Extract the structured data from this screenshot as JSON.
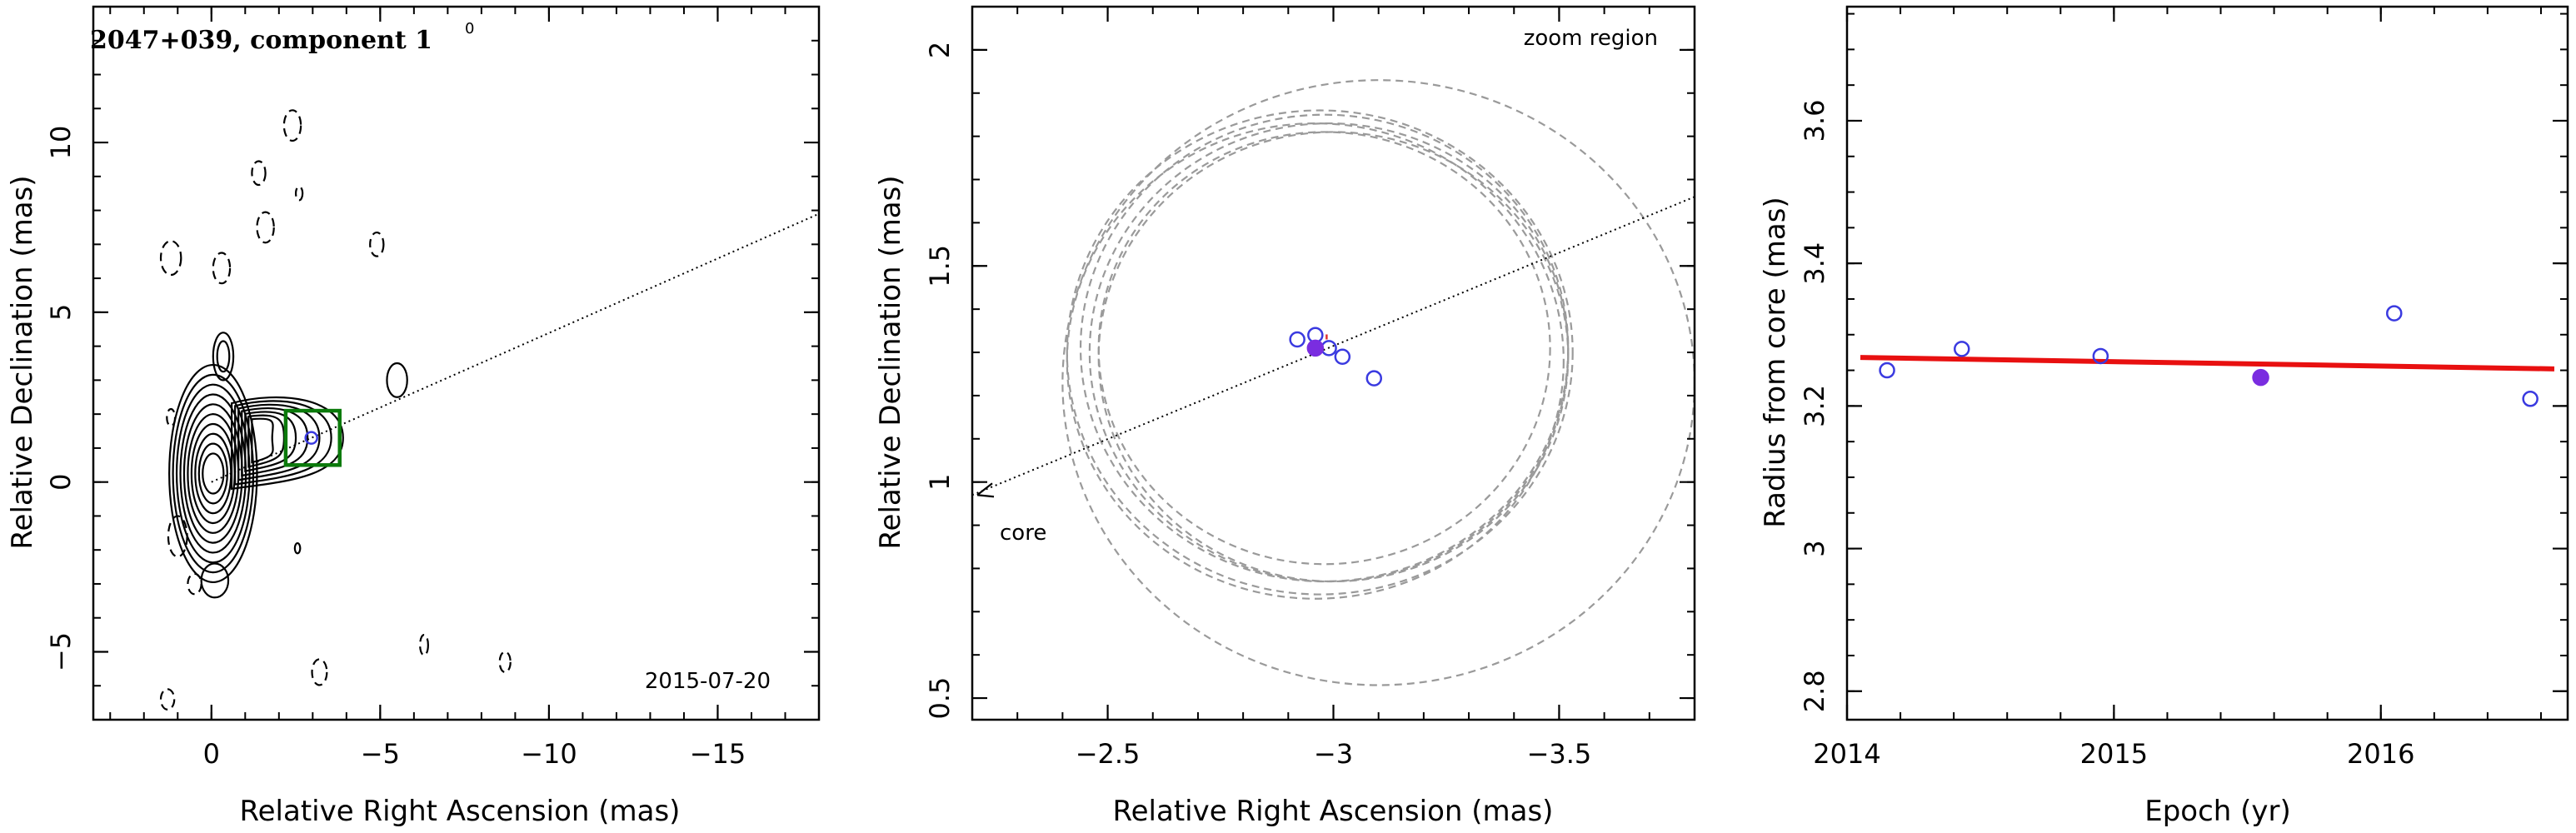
{
  "chart_data": [
    {
      "type": "contour",
      "title": "2047+039, component 1",
      "title_marker": "0",
      "xlabel": "Relative Right Ascension (mas)",
      "ylabel": "Relative Declination (mas)",
      "xlim": [
        3.5,
        -18
      ],
      "ylim": [
        -7,
        14
      ],
      "xticks": [
        0,
        -5,
        -10,
        -15
      ],
      "yticks": [
        -5,
        0,
        5,
        10
      ],
      "annotation": "2015-07-20",
      "component_position": [
        -2.96,
        1.3
      ],
      "zoom_box": {
        "x": [
          -2.2,
          -3.8
        ],
        "y": [
          0.5,
          2.1
        ],
        "color": "#0b7a0b"
      },
      "jet_direction_line": {
        "from": [
          0,
          0
        ],
        "to": [
          -18,
          7.9
        ]
      },
      "colors": {
        "positive_contours": "#000000",
        "negative_contours": "#000000",
        "component": "#3a3ae0",
        "zoom_box": "#0b7a0b"
      }
    },
    {
      "type": "scatter",
      "title": "",
      "xlabel": "Relative Right Ascension (mas)",
      "ylabel": "Relative Declination (mas)",
      "xlim": [
        -2.2,
        -3.8
      ],
      "ylim": [
        0.45,
        2.1
      ],
      "xticks": [
        -2.5,
        -3,
        -3.5
      ],
      "yticks": [
        0.5,
        1,
        1.5,
        2
      ],
      "annotations": [
        "zoom region",
        "core"
      ],
      "points": [
        {
          "x": -2.92,
          "y": 1.33,
          "filled": false
        },
        {
          "x": -2.96,
          "y": 1.34,
          "filled": false
        },
        {
          "x": -2.99,
          "y": 1.31,
          "filled": false
        },
        {
          "x": -3.02,
          "y": 1.29,
          "filled": false
        },
        {
          "x": -3.09,
          "y": 1.24,
          "filled": false
        },
        {
          "x": -2.96,
          "y": 1.31,
          "filled": true
        }
      ],
      "beam_circles": [
        {
          "cx": -2.99,
          "cy": 1.3,
          "r": 0.53
        },
        {
          "cx": -2.98,
          "cy": 1.31,
          "r": 0.5
        },
        {
          "cx": -2.98,
          "cy": 1.31,
          "r": 0.54
        },
        {
          "cx": -2.97,
          "cy": 1.3,
          "r": 0.56
        },
        {
          "cx": -2.96,
          "cy": 1.28,
          "r": 0.55
        },
        {
          "cx": -3.0,
          "cy": 1.29,
          "r": 0.52
        },
        {
          "cx": -3.1,
          "cy": 1.23,
          "r": 0.7
        }
      ],
      "jet_direction_line": {
        "from": [
          -2.2,
          0.97
        ],
        "to": [
          -3.8,
          1.66
        ]
      },
      "colors": {
        "open_points": "#3a3ae0",
        "filled_point": "#7a2de0",
        "circles": "#9a9a9a",
        "highlight": "#e03030"
      }
    },
    {
      "type": "scatter",
      "title": "",
      "xlabel": "Epoch (yr)",
      "ylabel": "Radius from core (mas)",
      "xlim": [
        2014,
        2016.7
      ],
      "ylim": [
        2.76,
        3.76
      ],
      "xticks": [
        2014,
        2015,
        2016
      ],
      "yticks": [
        2.8,
        3,
        3.2,
        3.4,
        3.6
      ],
      "points": [
        {
          "x": 2014.15,
          "y": 3.25,
          "filled": false
        },
        {
          "x": 2014.43,
          "y": 3.28,
          "filled": false
        },
        {
          "x": 2014.95,
          "y": 3.27,
          "filled": false
        },
        {
          "x": 2015.55,
          "y": 3.24,
          "filled": true
        },
        {
          "x": 2016.05,
          "y": 3.33,
          "filled": false
        },
        {
          "x": 2016.56,
          "y": 3.21,
          "filled": false
        }
      ],
      "fit_line": {
        "x": [
          2014.05,
          2016.65
        ],
        "y": [
          3.268,
          3.252
        ]
      },
      "colors": {
        "open_points": "#3a3ae0",
        "filled_point": "#7a2de0",
        "fit": "#e81010"
      }
    }
  ]
}
